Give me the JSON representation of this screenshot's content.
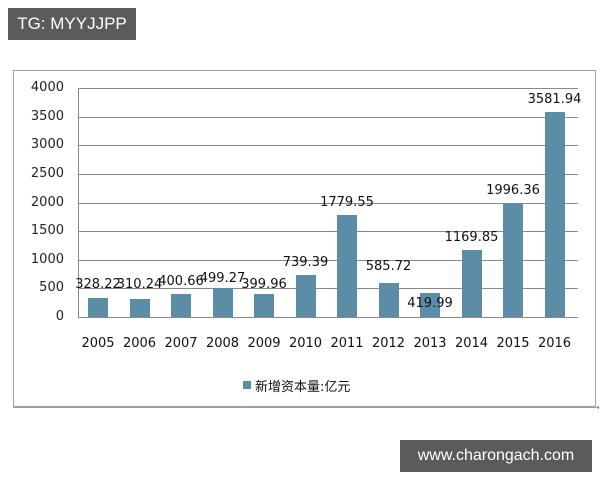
{
  "watermarks": {
    "top_left": "TG: MYYJJPP",
    "bottom_right": "www.charongach.com"
  },
  "colors": {
    "bar": "#5b8ea6",
    "watermark_bg": "#5b5b5b",
    "grid": "#8a8a8a"
  },
  "chart_data": {
    "type": "bar",
    "title": "",
    "xlabel": "",
    "ylabel": "",
    "categories": [
      "2005",
      "2006",
      "2007",
      "2008",
      "2009",
      "2010",
      "2011",
      "2012",
      "2013",
      "2014",
      "2015",
      "2016"
    ],
    "series": [
      {
        "name": "新增资本量:亿元",
        "values": [
          328.22,
          310.24,
          400.66,
          499.27,
          399.96,
          739.39,
          1779.55,
          585.72,
          419.99,
          1169.85,
          1996.36,
          3581.94
        ]
      }
    ],
    "value_labels": [
      "328.22",
      "310.24",
      "400.66",
      "499.27",
      "399.96",
      "739.39",
      "1779.55",
      "585.72",
      "419.99",
      "1169.85",
      "1996.36",
      "3581.94"
    ],
    "yticks": [
      "0",
      "500",
      "1000",
      "1500",
      "2000",
      "2500",
      "3000",
      "3500",
      "4000"
    ],
    "ylim": [
      0,
      4000
    ],
    "grid": true,
    "legend_position": "bottom"
  },
  "legend": {
    "label": "新增资本量:亿元"
  }
}
